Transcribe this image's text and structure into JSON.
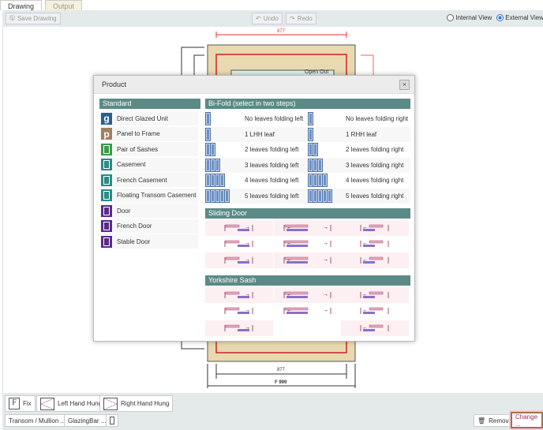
{
  "tabs": [
    {
      "label": "Drawing",
      "active": true
    },
    {
      "label": "Output",
      "active": false
    }
  ],
  "toolbar": {
    "save": "Save Drawing",
    "undo": "Undo",
    "redo": "Redo",
    "internal_view": "Internal View",
    "external_view": "External View",
    "selected_view": "External View"
  },
  "drawing": {
    "top_dim": "877",
    "bottom_inner_dim": "877",
    "bottom_outer_dim": "F 999",
    "sash_label": "Open Out"
  },
  "modal": {
    "title": "Product",
    "close": "×",
    "standard": {
      "header": "Standard",
      "items": [
        {
          "label": "Direct Glazed Unit",
          "glyph": "g",
          "color": "#2a5f8f"
        },
        {
          "label": "Panel to Frame",
          "glyph": "p",
          "color": "#a08060"
        },
        {
          "label": "Pair of Sashes",
          "glyph": "",
          "color": "#3a9a4a"
        },
        {
          "label": "Casement",
          "glyph": "",
          "color": "#2a8a86"
        },
        {
          "label": "French Casement",
          "glyph": "",
          "color": "#2a8a86"
        },
        {
          "label": "Floating Transom Casement",
          "glyph": "",
          "color": "#2a8a86"
        },
        {
          "label": "Door",
          "glyph": "",
          "color": "#5a2a8a"
        },
        {
          "label": "French Door",
          "glyph": "",
          "color": "#5a2a8a"
        },
        {
          "label": "Stable Door",
          "glyph": "",
          "color": "#5a2a8a"
        }
      ]
    },
    "bifold": {
      "header": "Bi-Fold (select in two steps)",
      "rows": [
        {
          "leaves": 1,
          "left": "No leaves folding left",
          "right": "No leaves folding right"
        },
        {
          "leaves": 1,
          "left": "1 LHH leaf",
          "right": "1 RHH leaf"
        },
        {
          "leaves": 2,
          "left": "2 leaves folding left",
          "right": "2 leaves folding right"
        },
        {
          "leaves": 3,
          "left": "3 leaves folding left",
          "right": "3 leaves folding right"
        },
        {
          "leaves": 4,
          "left": "4 leaves folding left",
          "right": "4 leaves folding right"
        },
        {
          "leaves": 5,
          "left": "5 leaves folding left",
          "right": "5 leaves folding right"
        }
      ]
    },
    "sliding": {
      "header": "Sliding Door"
    },
    "yorkshire": {
      "header": "Yorkshire Sash"
    }
  },
  "bottom": {
    "fix": "Fix",
    "fix_glyph": "F",
    "lhh": "Left Hand Hung",
    "rhh": "Right Hand Hung",
    "transom": "Transom / Mullion ...",
    "glazing": "GlazingBar ...",
    "remove": "Remove",
    "change": "Change ..."
  },
  "colors": {
    "section_header": "#5c8a86",
    "bifold_icon": "#4a6fa0",
    "highlight": "#a07050"
  }
}
